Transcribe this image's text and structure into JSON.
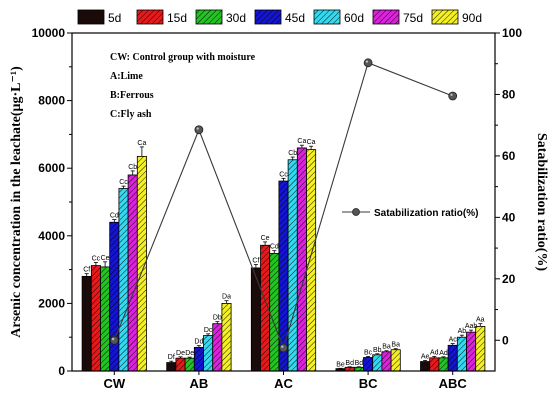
{
  "chart_data": {
    "type": "bar",
    "categories": [
      "CW",
      "AB",
      "AC",
      "BC",
      "ABC"
    ],
    "ylabel": "Arsenic concentration in the leachate(μg·L⁻¹)",
    "y2label": "Satabilization ratio(%)",
    "ylim": [
      0,
      10000
    ],
    "yticks": [
      0,
      2000,
      4000,
      6000,
      8000,
      10000
    ],
    "y2lim": [
      -10,
      100
    ],
    "y2ticks": [
      0,
      20,
      40,
      60,
      80,
      100
    ],
    "legend_position": "top",
    "series": [
      {
        "name": "5d",
        "color": "#1a0a0a",
        "pattern": "solid",
        "values": [
          2800,
          250,
          3050,
          70,
          280
        ],
        "errors": [
          80,
          40,
          100,
          10,
          30
        ],
        "labels": [
          "Cf",
          "Df",
          "Cf",
          "Be",
          "Ae"
        ]
      },
      {
        "name": "15d",
        "color": "#e8191b",
        "pattern": "diag",
        "values": [
          3120,
          380,
          3720,
          110,
          390
        ],
        "errors": [
          90,
          40,
          100,
          15,
          40
        ],
        "labels": [
          "Cc",
          "De",
          "Ce",
          "Bd",
          "Ad"
        ]
      },
      {
        "name": "30d",
        "color": "#22c422",
        "pattern": "diag",
        "values": [
          3080,
          380,
          3480,
          110,
          390
        ],
        "errors": [
          150,
          30,
          80,
          15,
          30
        ],
        "labels": [
          "Ce",
          "De",
          "Cd",
          "Bd",
          "Ad"
        ]
      },
      {
        "name": "45d",
        "color": "#1414d6",
        "pattern": "diag",
        "values": [
          4400,
          700,
          5620,
          400,
          760
        ],
        "errors": [
          80,
          50,
          80,
          30,
          50
        ],
        "labels": [
          "Cd",
          "Dd",
          "Cc",
          "Bc",
          "Ac"
        ]
      },
      {
        "name": "60d",
        "color": "#33d9ef",
        "pattern": "diag",
        "values": [
          5400,
          1050,
          6250,
          480,
          1000
        ],
        "errors": [
          70,
          50,
          80,
          30,
          60
        ],
        "labels": [
          "Cc",
          "Dc",
          "Cb",
          "Bb",
          "Ab"
        ]
      },
      {
        "name": "75d",
        "color": "#dd22dd",
        "pattern": "diag",
        "values": [
          5800,
          1400,
          6600,
          570,
          1150
        ],
        "errors": [
          120,
          60,
          80,
          30,
          60
        ],
        "labels": [
          "Cb",
          "Db",
          "Ca",
          "Ba",
          "Aab"
        ]
      },
      {
        "name": "90d",
        "color": "#f4f022",
        "pattern": "diag",
        "values": [
          6350,
          2000,
          6550,
          630,
          1320
        ],
        "errors": [
          280,
          80,
          100,
          30,
          80
        ],
        "labels": [
          "Ca",
          "Da",
          "Ca",
          "Ba",
          "Aa"
        ]
      }
    ],
    "line_series": {
      "name": "Satabilization ratio(%)",
      "values": [
        0,
        68.5,
        -2.5,
        90.3,
        79.5
      ]
    },
    "annotations": [
      "CW: Control group with moisture",
      "A:Lime",
      "B:Ferrous",
      "C:Fly ash"
    ]
  }
}
